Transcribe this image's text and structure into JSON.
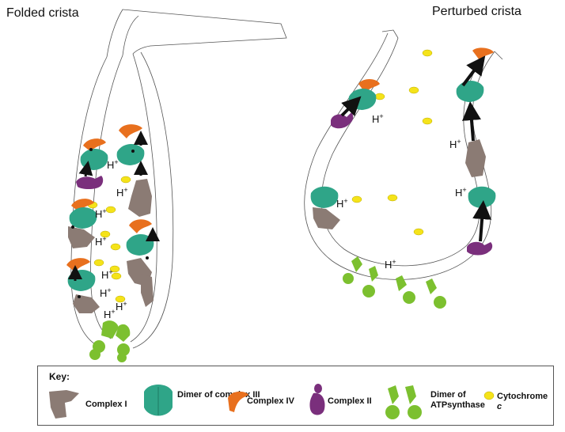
{
  "titles": {
    "left": "Folded crista",
    "right": "Perturbed crista"
  },
  "proton_label": "H",
  "proton_sup": "+",
  "key": {
    "title": "Key:",
    "items": [
      {
        "label": "Complex I",
        "color": "#8b7b74"
      },
      {
        "label": "Dimer of complex III",
        "color": "#2fa588"
      },
      {
        "label": "Complex IV",
        "color": "#e8701e"
      },
      {
        "label": "Complex II",
        "color": "#7a2f7c"
      },
      {
        "label": "Dimer of ATPsynthase",
        "color": "#7cc02f"
      },
      {
        "label": "Cytochrome ",
        "label_italic": "c",
        "color": "#f5e31a"
      }
    ]
  },
  "colors": {
    "complex_i": "#8b7b74",
    "complex_iii": "#2fa588",
    "complex_iv": "#e8701e",
    "complex_ii": "#7a2f7c",
    "atp_synthase": "#7cc02f",
    "cytochrome_c": "#f5e31a",
    "arrow": "#111111",
    "membrane": "#555555"
  }
}
